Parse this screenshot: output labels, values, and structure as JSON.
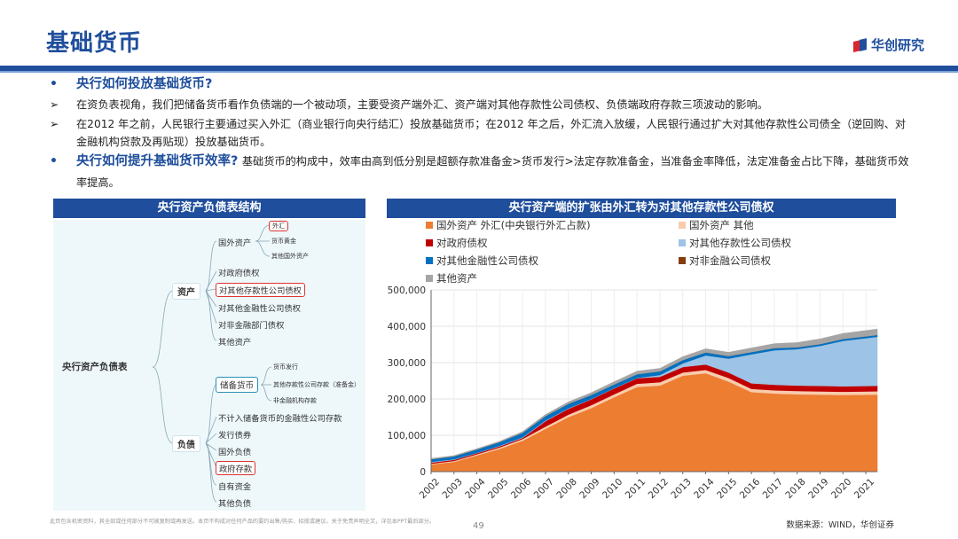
{
  "header": {
    "title": "基础货币",
    "brand": "华创研究",
    "brand_colors": {
      "primary": "#1f4e9c",
      "accent": "#d9262c"
    }
  },
  "bullets": [
    {
      "marker": "•",
      "type": "question",
      "text": "央行如何投放基础货币?",
      "rest": ""
    },
    {
      "marker": "➢",
      "type": "sub",
      "text": "在资负表视角，我们把储备货币看作负债端的一个被动项，主要受资产端外汇、资产端对其他存款性公司债权、负债端政府存款三项波动的影响。"
    },
    {
      "marker": "➢",
      "type": "sub",
      "text": "在2012 年之前，人民银行主要通过买入外汇（商业银行向央行结汇）投放基础货币；在2012 年之后，外汇流入放缓，人民银行通过扩大对其他存款性公司债全（逆回购、对金融机构贷款及再贴现）投放基础货币。"
    },
    {
      "marker": "•",
      "type": "question",
      "text": "央行如何提升基础货币效率?",
      "rest": "基础货币的构成中，效率由高到低分别是超额存款准备金>货币发行>法定存款准备金，当准备金率降低，法定准备金占比下降，基础货币效率提高。"
    }
  ],
  "left_panel": {
    "header": "央行资产负债表结构",
    "root": "央行资产负债表",
    "assets": {
      "label": "资产",
      "foreign": {
        "label": "国外资产",
        "children": [
          "外汇",
          "货币黄金",
          "其他国外资产"
        ]
      },
      "items": [
        "对政府债权",
        "对其他存款性公司债权",
        "对其他金融性公司债权",
        "对非金融部门债权",
        "其他资产"
      ]
    },
    "liabilities": {
      "label": "负债",
      "reserve": {
        "label": "储备货币",
        "children": [
          "货币发行",
          "其他存款性公司存款（准备金）",
          "非金融机构存款"
        ]
      },
      "items": [
        "不计入储备货币的金融性公司存款",
        "发行债券",
        "国外负债",
        "政府存款",
        "自有资金",
        "其他负债"
      ]
    }
  },
  "right_panel": {
    "header": "央行资产端的扩张由外汇转为对其他存款性公司债权"
  },
  "chart_data": {
    "type": "area",
    "stacked": true,
    "title": "央行资产端的扩张由外汇转为对其他存款性公司债权",
    "x": [
      2002,
      2003,
      2004,
      2005,
      2006,
      2007,
      2008,
      2009,
      2010,
      2011,
      2012,
      2013,
      2014,
      2015,
      2016,
      2017,
      2018,
      2019,
      2020,
      2021.5
    ],
    "x_ticks": [
      "2002",
      "2003",
      "2004",
      "2005",
      "2006",
      "2007",
      "2008",
      "2009",
      "2010",
      "2011",
      "2012",
      "2013",
      "2014",
      "2015",
      "2016",
      "2017",
      "2018",
      "2019",
      "2020",
      "2021"
    ],
    "ylim": [
      0,
      500000
    ],
    "y_ticks": [
      "0",
      "100,000",
      "200,000",
      "300,000",
      "400,000",
      "500,000"
    ],
    "grid": true,
    "legend_position": "top",
    "series": [
      {
        "name": "国外资产 外汇(中央银行外汇占款)",
        "color": "#ed7d31",
        "values": [
          20000,
          27000,
          45000,
          63000,
          85000,
          118000,
          150000,
          175000,
          205000,
          233000,
          237000,
          264000,
          271000,
          248000,
          219000,
          215000,
          213000,
          212000,
          211000,
          212000
        ]
      },
      {
        "name": "国外资产 其他",
        "color": "#f8cbad",
        "values": [
          2000,
          2500,
          3000,
          4000,
          5000,
          6000,
          7000,
          8000,
          8000,
          9000,
          9000,
          9000,
          9000,
          10000,
          9000,
          9000,
          9000,
          9000,
          9000,
          9000
        ]
      },
      {
        "name": "对政府债权",
        "color": "#c00000",
        "values": [
          3000,
          3000,
          3000,
          3000,
          3000,
          15000,
          16000,
          16000,
          16000,
          15000,
          15000,
          15000,
          15000,
          15000,
          15000,
          15000,
          15000,
          15000,
          15000,
          15000
        ]
      },
      {
        "name": "对其他存款性公司债权",
        "color": "#9dc3e6",
        "values": [
          2000,
          1500,
          1000,
          1500,
          2000,
          2000,
          1500,
          1000,
          1000,
          1000,
          5000,
          10000,
          25000,
          38000,
          80000,
          95000,
          100000,
          110000,
          125000,
          135000
        ]
      },
      {
        "name": "对其他金融性公司债权",
        "color": "#0070c0",
        "values": [
          7000,
          8000,
          9000,
          10000,
          12000,
          12000,
          12000,
          11000,
          10000,
          10000,
          10000,
          9000,
          8000,
          7000,
          6000,
          6000,
          5000,
          5000,
          5000,
          5000
        ]
      },
      {
        "name": "对非金融公司债权",
        "color": "#843c0c",
        "values": [
          100,
          100,
          100,
          100,
          100,
          100,
          100,
          100,
          100,
          100,
          100,
          100,
          100,
          100,
          100,
          100,
          100,
          100,
          100,
          100
        ]
      },
      {
        "name": "其他资产",
        "color": "#a5a5a5",
        "values": [
          2000,
          2000,
          2000,
          2000,
          3000,
          4000,
          5000,
          6000,
          7000,
          8000,
          8000,
          9000,
          10000,
          10000,
          11000,
          12000,
          13000,
          14000,
          15000,
          16000
        ]
      }
    ]
  },
  "footer": {
    "disclaimer": "此页包含机密资料，其全部或任何部分不可被复制或再发送。本页不构成对任何产品的要约出售/购买、招揽或建议。关于免责声明全文，详见本PPT最后部分。",
    "page": "49",
    "source": "数据来源：WIND，华创证券"
  }
}
